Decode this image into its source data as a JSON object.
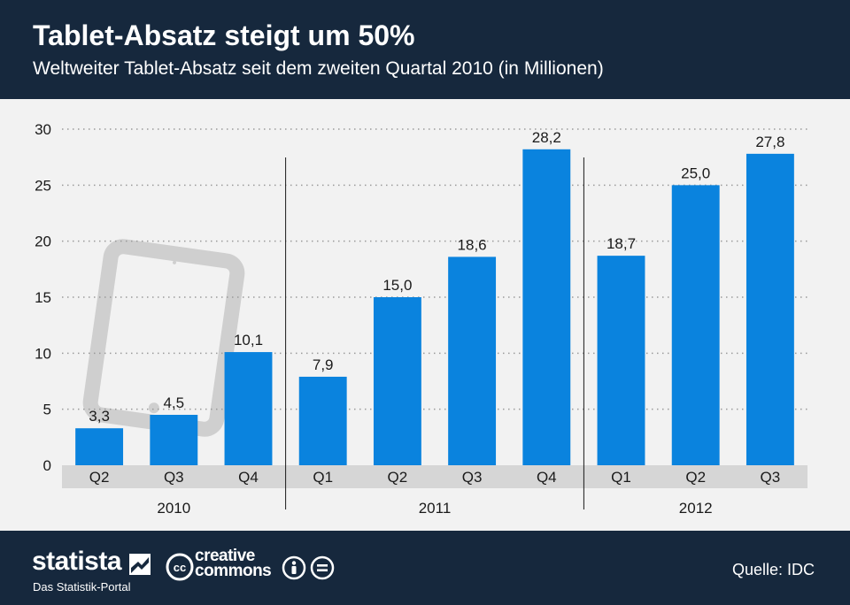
{
  "header": {
    "title": "Tablet-Absatz steigt um 50%",
    "subtitle": "Weltweiter Tablet-Absatz seit dem zweiten Quartal 2010 (in Millionen)"
  },
  "chart_data": {
    "type": "bar",
    "categories": [
      "Q2",
      "Q3",
      "Q4",
      "Q1",
      "Q2",
      "Q3",
      "Q4",
      "Q1",
      "Q2",
      "Q3"
    ],
    "groups": [
      {
        "label": "2010",
        "count": 3
      },
      {
        "label": "2011",
        "count": 4
      },
      {
        "label": "2012",
        "count": 3
      }
    ],
    "values": [
      3.3,
      4.5,
      10.1,
      7.9,
      15.0,
      18.6,
      28.2,
      18.7,
      25.0,
      27.8
    ],
    "value_labels": [
      "3,3",
      "4,5",
      "10,1",
      "7,9",
      "15,0",
      "18,6",
      "28,2",
      "18,7",
      "25,0",
      "27,8"
    ],
    "ylim": [
      0,
      30
    ],
    "yticks": [
      0,
      5,
      10,
      15,
      20,
      25,
      30
    ],
    "grid": true,
    "bar_color": "#0a83de",
    "category_band_color": "#d6d6d6",
    "decoration": "tablet-icon"
  },
  "footer": {
    "brand": "statista",
    "tagline": "Das Statistik-Portal",
    "license_line1": "creative",
    "license_line2": "commons",
    "source": "Quelle: IDC"
  },
  "colors": {
    "header_bg": "#16283d",
    "chart_bg": "#f2f2f2",
    "bar": "#0a83de",
    "text": "#1a1a1a"
  }
}
